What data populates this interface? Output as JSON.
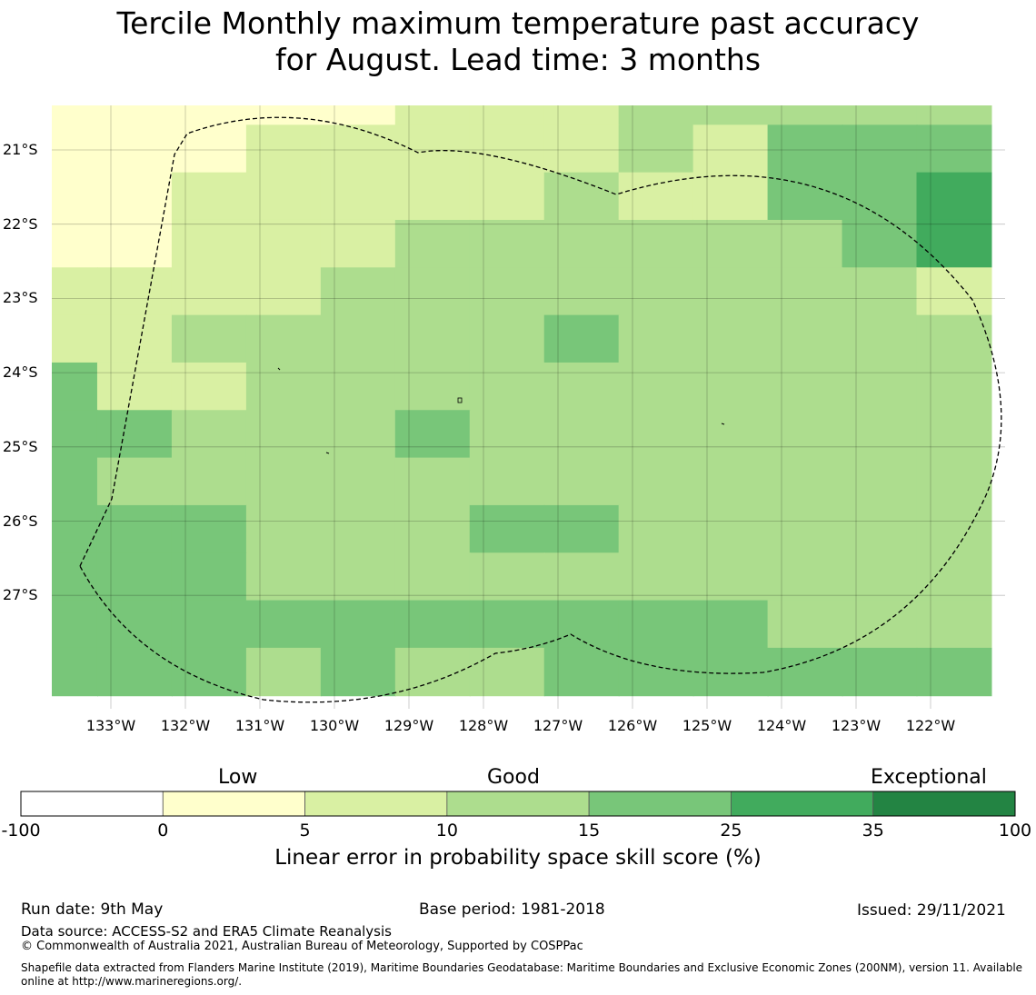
{
  "title": {
    "line1": "Tercile Monthly maximum temperature past accuracy",
    "line2": "for August. Lead time: 3 months"
  },
  "map": {
    "lon_labels": [
      "133°W",
      "132°W",
      "131°W",
      "130°W",
      "129°W",
      "128°W",
      "127°W",
      "126°W",
      "125°W",
      "124°W",
      "123°W",
      "122°W"
    ],
    "lat_labels": [
      "21°S",
      "22°S",
      "23°S",
      "24°S",
      "25°S",
      "26°S",
      "27°S"
    ],
    "colors": {
      "c0": "#ffffcc",
      "c1": "#d9f0a3",
      "c2": "#addd8e",
      "c3": "#78c679",
      "c4": "#41ab5d",
      "c5": "#238443"
    },
    "grid_classes": [
      "0000011122222",
      "0001111121333",
      "0011111211334",
      "0011122222234",
      "1111222222221",
      "1122222322222",
      "3112222222222",
      "3322232222222",
      "3222222222222",
      "3332223322222",
      "3332222222222",
      "3333333333222",
      "3332322333333"
    ]
  },
  "colorbar": {
    "words": [
      "Low",
      "Good",
      "Exceptional"
    ],
    "ticks": [
      "-100",
      "0",
      "5",
      "10",
      "15",
      "25",
      "35",
      "100"
    ],
    "colors": [
      "#ffffff",
      "#ffffcc",
      "#d9f0a3",
      "#addd8e",
      "#78c679",
      "#41ab5d",
      "#238443"
    ],
    "title": "Linear error in probability space skill score (%)"
  },
  "footer": {
    "run_date": "Run date: 9th May",
    "base_period": "Base period: 1981-2018",
    "issued": "Issued: 29/11/2021",
    "data_source": "Data source: ACCESS-S2 and ERA5 Climate Reanalysis",
    "copyright": "© Commonwealth of Australia 2021, Australian Bureau of Meteorology, Supported by COSPPac",
    "shapefile": "Shapefile data extracted from Flanders Marine Institute (2019), Maritime Boundaries Geodatabase: Maritime Boundaries and Exclusive Economic Zones (200NM), version 11. Available online at http://www.marineregions.org/."
  }
}
